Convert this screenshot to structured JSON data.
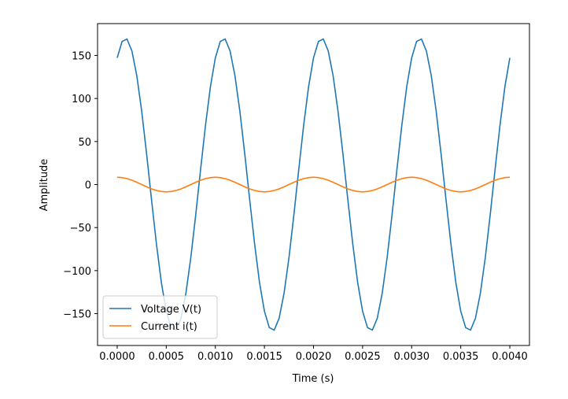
{
  "chart_data": {
    "type": "line",
    "x_label": "Time (s)",
    "y_label": "Amplitude",
    "x": [
      0,
      5e-05,
      0.0001,
      0.00015,
      0.0002,
      0.00025,
      0.0003,
      0.00035,
      0.0004,
      0.00045,
      0.0005,
      0.00055,
      0.0006,
      0.00065,
      0.0007,
      0.00075,
      0.0008,
      0.00085,
      0.0009,
      0.00095,
      0.001,
      0.00105,
      0.0011,
      0.00115,
      0.0012,
      0.00125,
      0.0013,
      0.00135,
      0.0014,
      0.00145,
      0.0015,
      0.00155,
      0.0016,
      0.00165,
      0.0017,
      0.00175,
      0.0018,
      0.00185,
      0.0019,
      0.00195,
      0.002,
      0.00205,
      0.0021,
      0.00215,
      0.0022,
      0.00225,
      0.0023,
      0.00235,
      0.0024,
      0.00245,
      0.0025,
      0.00255,
      0.0026,
      0.00265,
      0.0027,
      0.00275,
      0.0028,
      0.00285,
      0.0029,
      0.00295,
      0.003,
      0.00305,
      0.0031,
      0.00315,
      0.0032,
      0.00325,
      0.0033,
      0.00335,
      0.0034,
      0.00345,
      0.0035,
      0.00355,
      0.0036,
      0.00365,
      0.0037,
      0.00375,
      0.0038,
      0.00385,
      0.0039,
      0.00395,
      0.004
    ],
    "series": [
      {
        "name": "Voltage V(t)",
        "color": "#1f77b4",
        "values": [
          147.2,
          166.3,
          169.1,
          155.3,
          126.3,
          85,
          35.3,
          -17.8,
          -69.1,
          -113.8,
          -147.2,
          -166.3,
          -169.1,
          -155.3,
          -126.3,
          -85,
          -35.3,
          17.8,
          69.1,
          113.8,
          147.2,
          166.3,
          169.1,
          155.3,
          126.3,
          85,
          35.3,
          -17.8,
          -69.1,
          -113.8,
          -147.2,
          -166.3,
          -169.1,
          -155.3,
          -126.3,
          -85,
          -35.3,
          17.8,
          69.1,
          113.8,
          147.2,
          166.3,
          169.1,
          155.3,
          126.3,
          85,
          35.3,
          -17.8,
          -69.1,
          -113.8,
          -147.2,
          -166.3,
          -169.1,
          -155.3,
          -126.3,
          -85,
          -35.3,
          17.8,
          69.1,
          113.8,
          147.2,
          166.3,
          169.1,
          155.3,
          126.3,
          85,
          35.3,
          -17.8,
          -69.1,
          -113.8,
          -147.2,
          -166.3,
          -169.1,
          -155.3,
          -126.3,
          -85,
          -35.3,
          17.8,
          69.1,
          113.8,
          147.2
        ]
      },
      {
        "name": "Current i(t)",
        "color": "#ff7f0e",
        "values": [
          8.5,
          8.08,
          6.88,
          5,
          2.63,
          0,
          -2.63,
          -5,
          -6.88,
          -8.08,
          -8.5,
          -8.08,
          -6.88,
          -5,
          -2.63,
          0,
          2.63,
          5,
          6.88,
          8.08,
          8.5,
          8.08,
          6.88,
          5,
          2.63,
          0,
          -2.63,
          -5,
          -6.88,
          -8.08,
          -8.5,
          -8.08,
          -6.88,
          -5,
          -2.63,
          0,
          2.63,
          5,
          6.88,
          8.08,
          8.5,
          8.08,
          6.88,
          5,
          2.63,
          0,
          -2.63,
          -5,
          -6.88,
          -8.08,
          -8.5,
          -8.08,
          -6.88,
          -5,
          -2.63,
          0,
          2.63,
          5,
          6.88,
          8.08,
          8.5,
          8.08,
          6.88,
          5,
          2.63,
          0,
          -2.63,
          -5,
          -6.88,
          -8.08,
          -8.5,
          -8.08,
          -6.88,
          -5,
          -2.63,
          0,
          2.63,
          5,
          6.88,
          8.08,
          8.5
        ]
      }
    ],
    "xlim": [
      -0.0002,
      0.0042
    ],
    "xticks": [
      {
        "value": 0,
        "label": "0.0000"
      },
      {
        "value": 0.0005,
        "label": "0.0005"
      },
      {
        "value": 0.001,
        "label": "0.0010"
      },
      {
        "value": 0.0015,
        "label": "0.0015"
      },
      {
        "value": 0.002,
        "label": "0.0020"
      },
      {
        "value": 0.0025,
        "label": "0.0025"
      },
      {
        "value": 0.003,
        "label": "0.0030"
      },
      {
        "value": 0.0035,
        "label": "0.0035"
      },
      {
        "value": 0.004,
        "label": "0.0040"
      }
    ],
    "ylim": [
      -187,
      187
    ],
    "yticks": [
      {
        "value": -150,
        "label": "−150"
      },
      {
        "value": -100,
        "label": "−100"
      },
      {
        "value": -50,
        "label": "−50"
      },
      0,
      50,
      100,
      150
    ],
    "grid": false,
    "legend": "lower left"
  }
}
